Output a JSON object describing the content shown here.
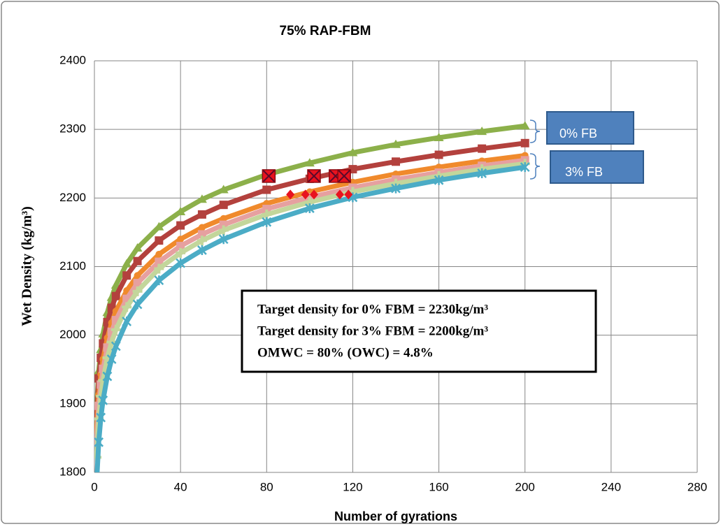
{
  "chart_data": {
    "type": "scatter-line",
    "title": "75% RAP-FBM",
    "x_label": "Number of gyrations",
    "y_label": "Wet Density (kg/m³)",
    "xlim": [
      0,
      280
    ],
    "xticks": [
      0,
      40,
      80,
      120,
      160,
      200,
      240,
      280
    ],
    "ylim": [
      1800,
      2400
    ],
    "yticks": [
      1800,
      1900,
      2000,
      2100,
      2200,
      2300,
      2400
    ],
    "grid": true,
    "x": [
      1,
      2,
      3,
      4,
      6,
      8,
      10,
      15,
      20,
      30,
      40,
      50,
      60,
      80,
      100,
      120,
      140,
      160,
      180,
      200
    ],
    "series": [
      {
        "color": "#8cb04a",
        "marker": "triangle",
        "values": [
          1894,
          1948,
          1979,
          2002,
          2033,
          2055,
          2073,
          2104,
          2127,
          2158,
          2180,
          2198,
          2212,
          2234,
          2251,
          2266,
          2278,
          2288,
          2297,
          2305
        ]
      },
      {
        "color": "#b3413d",
        "marker": "square",
        "values": [
          1885,
          1937,
          1967,
          1988,
          2019,
          2040,
          2057,
          2087,
          2108,
          2138,
          2160,
          2176,
          2190,
          2212,
          2228,
          2242,
          2253,
          2263,
          2272,
          2280
        ]
      },
      {
        "color": "#f08a2c",
        "marker": "circle",
        "values": [
          1860,
          1913,
          1943,
          1965,
          1996,
          2018,
          2035,
          2065,
          2087,
          2118,
          2140,
          2157,
          2170,
          2192,
          2209,
          2223,
          2235,
          2245,
          2254,
          2262
        ]
      },
      {
        "color": "#e6a0a0",
        "marker": "square",
        "values": [
          1843,
          1897,
          1928,
          1951,
          1982,
          2005,
          2022,
          2053,
          2076,
          2107,
          2130,
          2147,
          2161,
          2184,
          2201,
          2215,
          2227,
          2237,
          2247,
          2255
        ]
      },
      {
        "color": "#c3d69b",
        "marker": "plus",
        "values": [
          1822,
          1878,
          1911,
          1934,
          1967,
          1990,
          2008,
          2041,
          2064,
          2097,
          2120,
          2138,
          2153,
          2176,
          2194,
          2209,
          2221,
          2232,
          2242,
          2250
        ]
      },
      {
        "color": "#4bacc6",
        "marker": "asterisk",
        "values": [
          1784,
          1844,
          1880,
          1905,
          1940,
          1965,
          1984,
          2020,
          2045,
          2080,
          2105,
          2124,
          2140,
          2165,
          2185,
          2201,
          2214,
          2226,
          2236,
          2245
        ]
      },
      {
        "color": "#e8131f",
        "marker": "xbox",
        "line": false,
        "x": [
          81,
          102,
          112,
          116
        ],
        "values": [
          2232,
          2232,
          2232,
          2232
        ]
      },
      {
        "color": "#e8131f",
        "marker": "diamond",
        "line": false,
        "x": [
          91,
          98,
          102,
          114,
          118
        ],
        "values": [
          2205,
          2205,
          2205,
          2205,
          2205
        ]
      }
    ],
    "annotations": [
      "Target density for 0% FBM = 2230kg/m³",
      "Target density for  3% FBM = 2200kg/m³",
      "OMWC = 80% (OWC) = 4.8%"
    ],
    "callouts": [
      "0% FB",
      "3% FB"
    ]
  }
}
